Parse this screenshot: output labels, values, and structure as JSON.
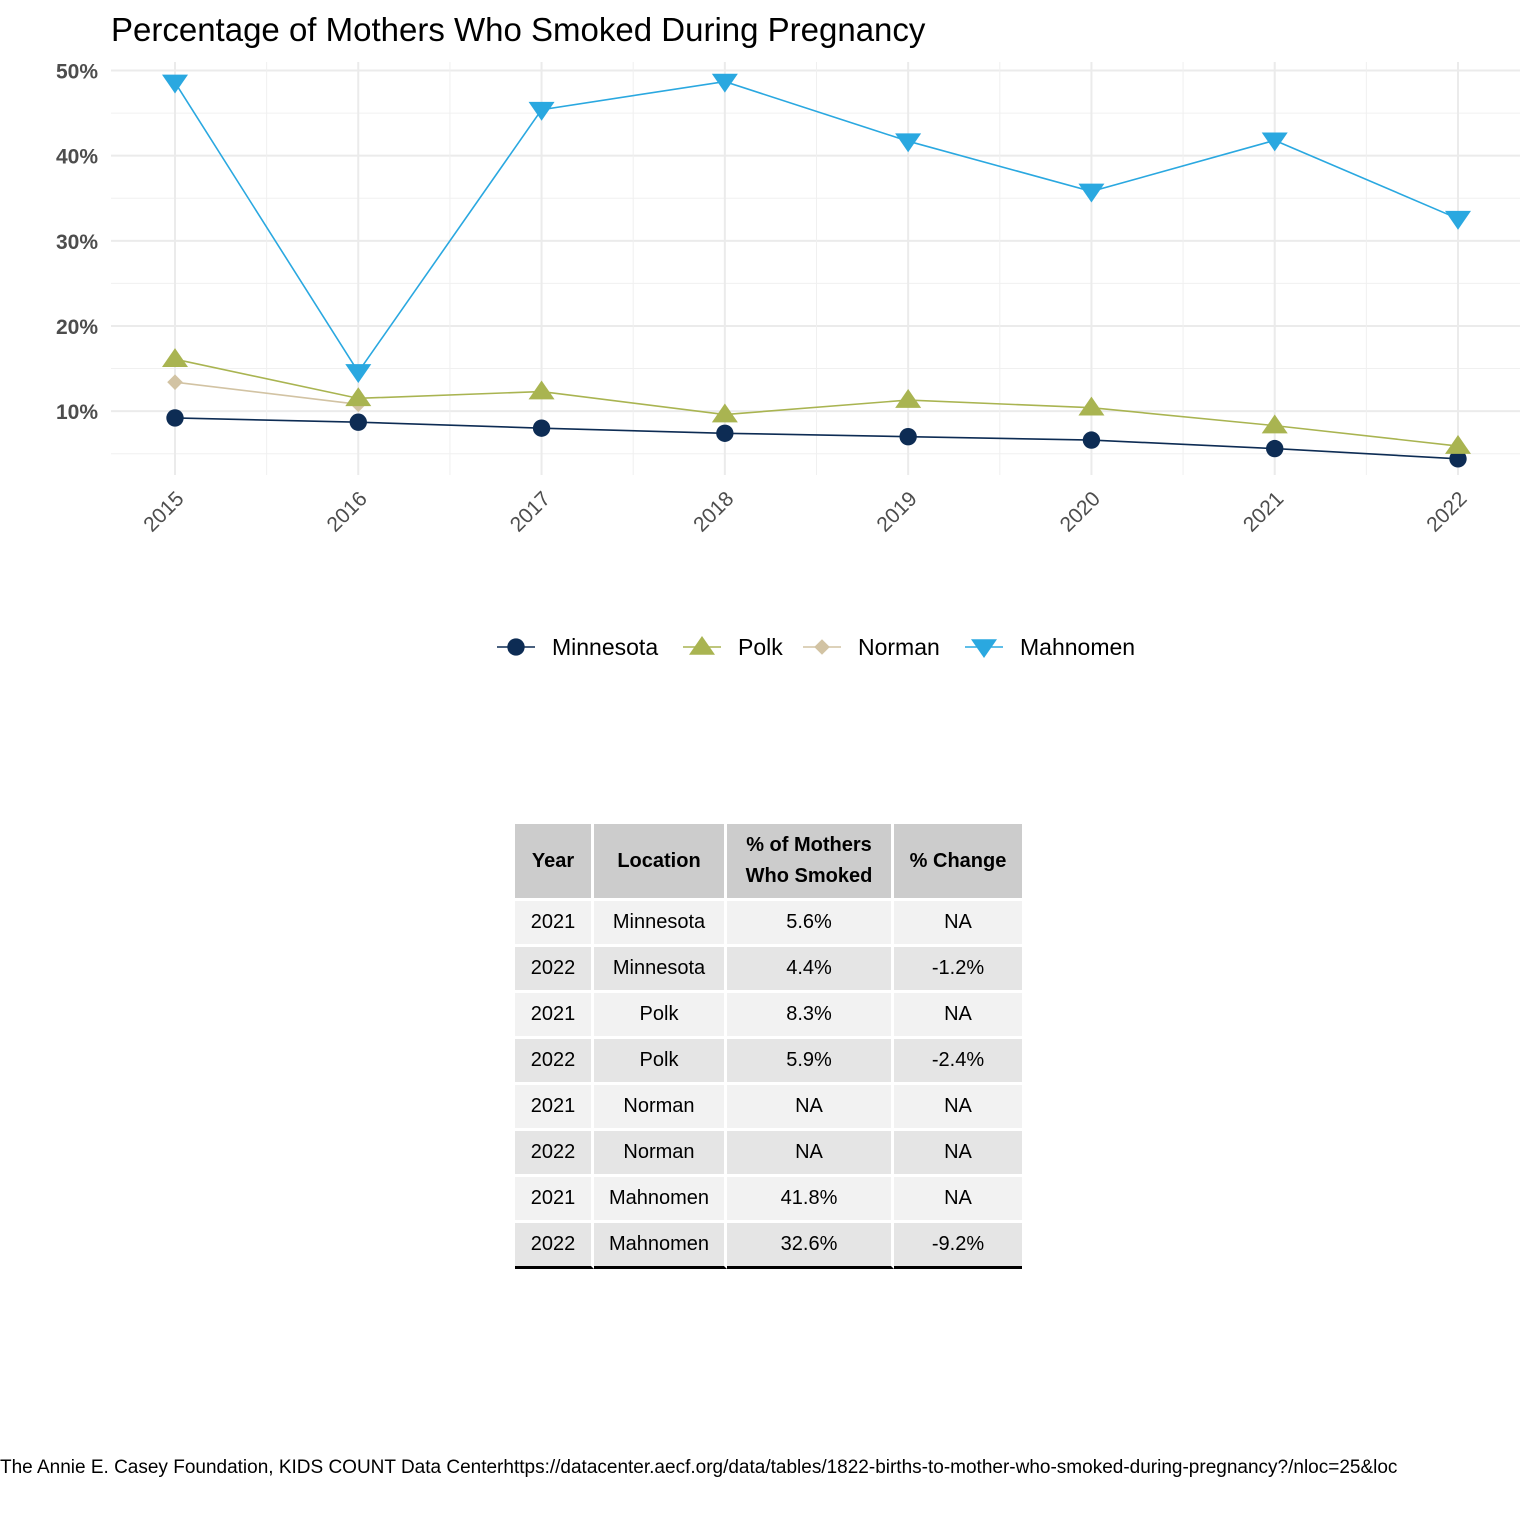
{
  "chart_data": {
    "type": "line",
    "title": "Percentage of Mothers Who Smoked During Pregnancy",
    "xlabel": "",
    "ylabel": "",
    "x": [
      "2015",
      "2016",
      "2017",
      "2018",
      "2019",
      "2020",
      "2021",
      "2022"
    ],
    "ylim": [
      2.5,
      51
    ],
    "yticks": [
      10,
      20,
      30,
      40,
      50
    ],
    "ytick_labels": [
      "10%",
      "20%",
      "30%",
      "40%",
      "50%"
    ],
    "grid": true,
    "legend_position": "bottom",
    "series": [
      {
        "name": "Minnesota",
        "color": "#0d2c54",
        "marker": "circle",
        "values": [
          9.2,
          8.7,
          8.0,
          7.4,
          7.0,
          6.6,
          5.6,
          4.4
        ]
      },
      {
        "name": "Polk",
        "color": "#a9b451",
        "marker": "triangle-up",
        "values": [
          16.1,
          11.5,
          12.3,
          9.6,
          11.3,
          10.4,
          8.3,
          5.9
        ]
      },
      {
        "name": "Norman",
        "color": "#d2c3a3",
        "marker": "diamond",
        "values": [
          13.4,
          10.8,
          null,
          null,
          null,
          null,
          null,
          null
        ]
      },
      {
        "name": "Mahnomen",
        "color": "#2aa8e0",
        "marker": "triangle-down",
        "values": [
          48.6,
          14.6,
          45.4,
          48.7,
          41.7,
          35.8,
          41.8,
          32.6
        ]
      }
    ]
  },
  "table": {
    "headers": [
      "Year",
      "Location",
      "% of Mothers Who Smoked",
      "% Change"
    ],
    "rows": [
      [
        "2021",
        "Minnesota",
        "5.6%",
        "NA"
      ],
      [
        "2022",
        "Minnesota",
        "4.4%",
        "-1.2%"
      ],
      [
        "2021",
        "Polk",
        "8.3%",
        "NA"
      ],
      [
        "2022",
        "Polk",
        "5.9%",
        "-2.4%"
      ],
      [
        "2021",
        "Norman",
        "NA",
        "NA"
      ],
      [
        "2022",
        "Norman",
        "NA",
        "NA"
      ],
      [
        "2021",
        "Mahnomen",
        "41.8%",
        "NA"
      ],
      [
        "2022",
        "Mahnomen",
        "32.6%",
        "-9.2%"
      ]
    ]
  },
  "source_caption": "The Annie E. Casey Foundation, KIDS COUNT Data Centerhttps://datacenter.aecf.org/data/tables/1822-births-to-mother-who-smoked-during-pregnancy?/nloc=25&loc"
}
